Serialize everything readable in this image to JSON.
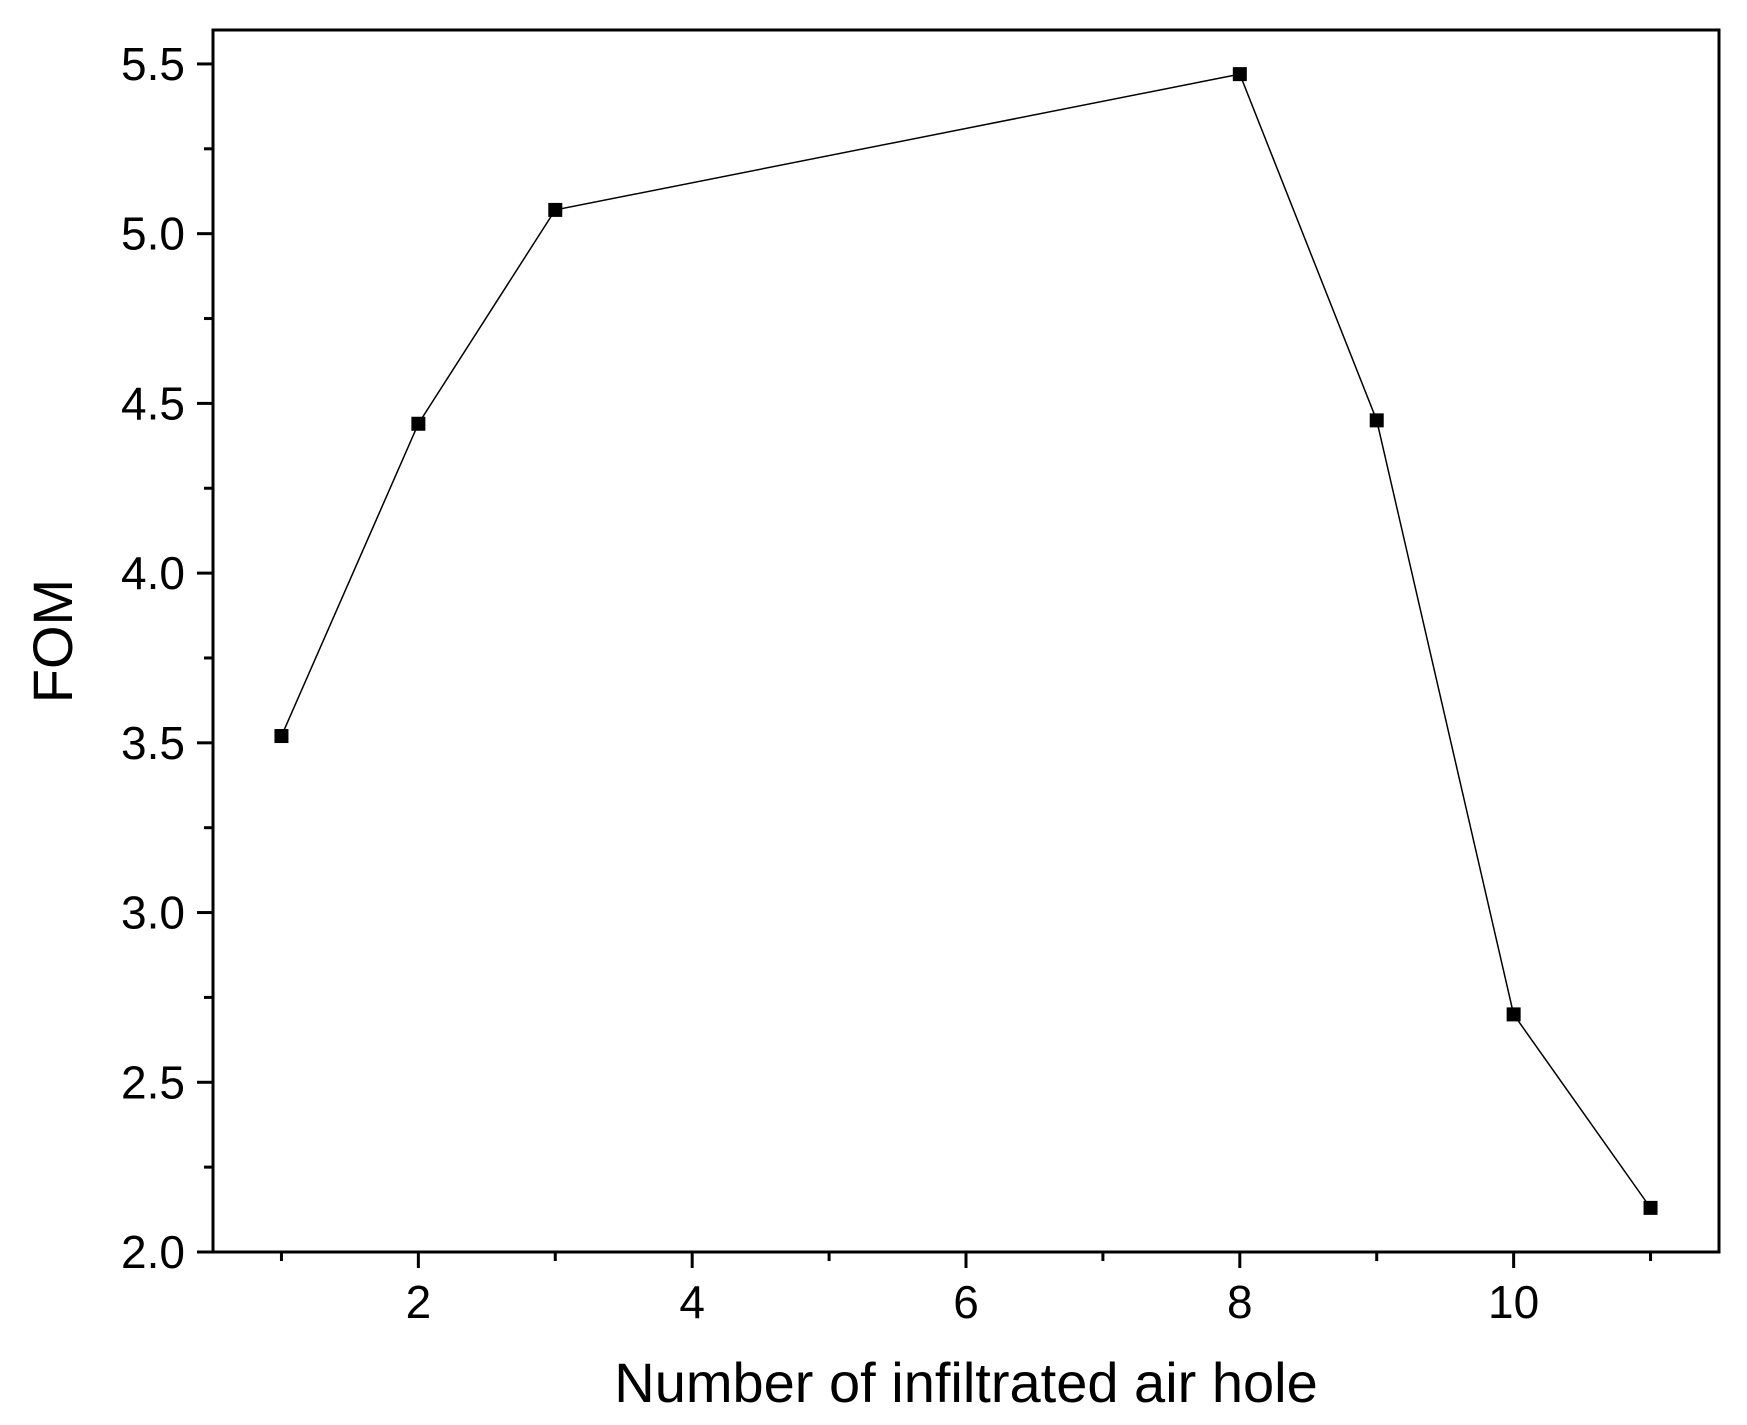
{
  "chart_data": {
    "type": "line",
    "title": "",
    "xlabel": "Number of infiltrated air hole",
    "ylabel": "FOM",
    "xlim": [
      0.5,
      11.5
    ],
    "ylim": [
      2.0,
      5.6
    ],
    "x_ticks": [
      2,
      4,
      6,
      8,
      10
    ],
    "x_tick_labels": [
      "2",
      "4",
      "6",
      "8",
      "10"
    ],
    "x_minor_ticks": [
      1,
      3,
      5,
      7,
      9,
      11
    ],
    "y_ticks": [
      2.0,
      2.5,
      3.0,
      3.5,
      4.0,
      4.5,
      5.0,
      5.5
    ],
    "y_tick_labels": [
      "2.0",
      "2.5",
      "3.0",
      "3.5",
      "4.0",
      "4.5",
      "5.0",
      "5.5"
    ],
    "y_minor_ticks": [
      2.25,
      2.75,
      3.25,
      3.75,
      4.25,
      4.75,
      5.25
    ],
    "grid": false,
    "legend": "none",
    "series": [
      {
        "marker": "square",
        "color": "#000000",
        "x": [
          1,
          2,
          3,
          8,
          9,
          10,
          11
        ],
        "y": [
          3.52,
          4.44,
          5.07,
          5.47,
          4.45,
          2.7,
          2.13
        ]
      }
    ]
  }
}
